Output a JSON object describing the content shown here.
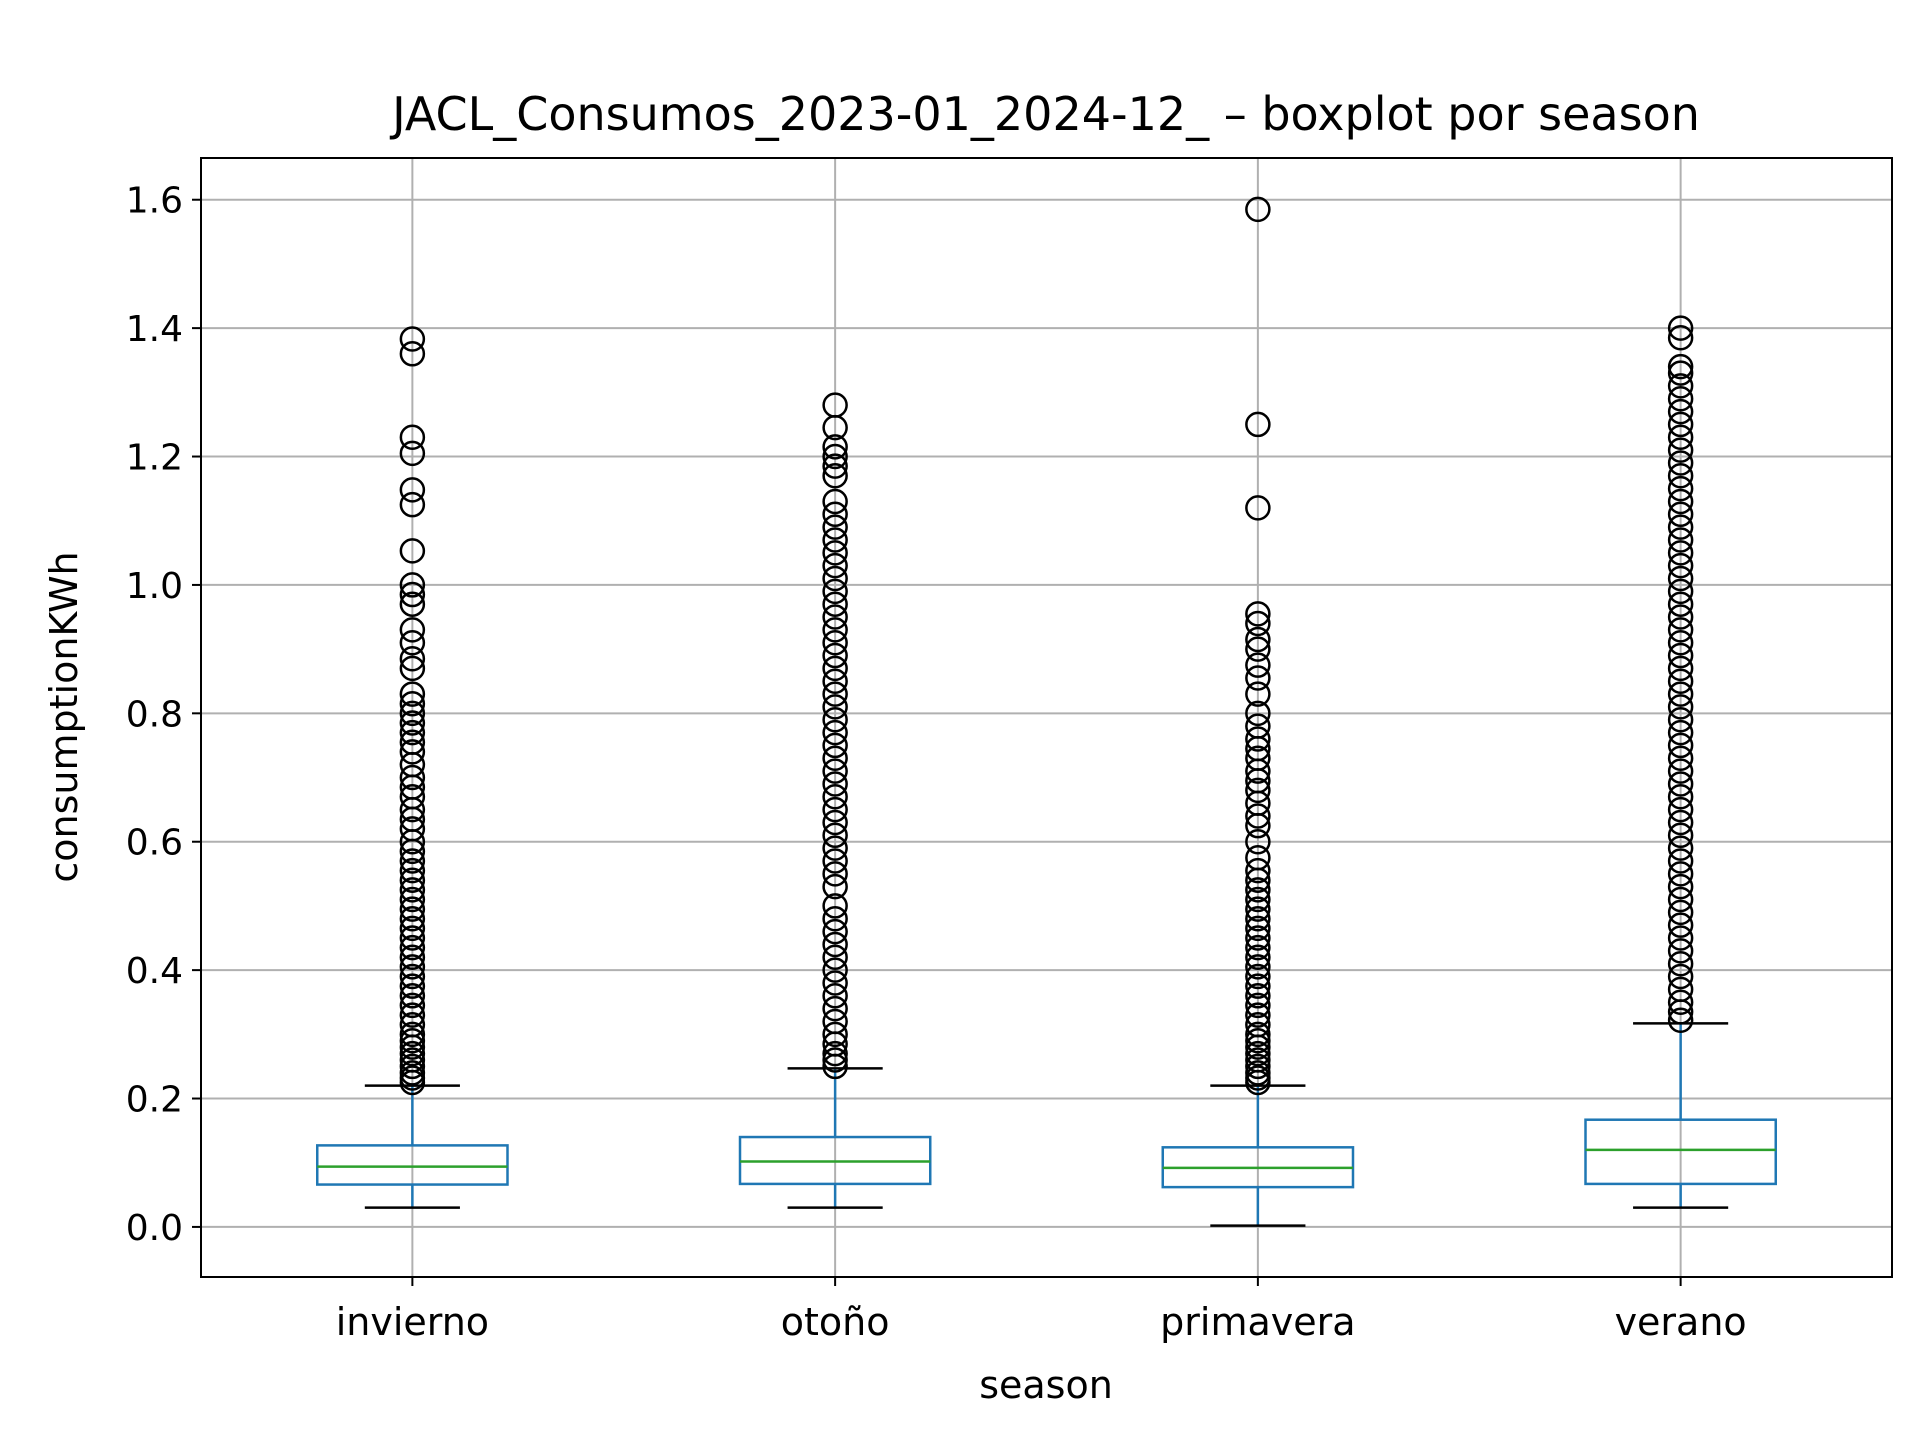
{
  "chart_data": {
    "type": "boxplot",
    "title": "JACL_Consumos_2023-01_2024-12_ – boxplot por season",
    "xlabel": "season",
    "ylabel": "consumptionKWh",
    "ylim": [
      -0.078,
      1.665
    ],
    "yticks": [
      0.0,
      0.2,
      0.4,
      0.6,
      0.8,
      1.0,
      1.2,
      1.4,
      1.6
    ],
    "ytick_labels": [
      "0.0",
      "0.2",
      "0.4",
      "0.6",
      "0.8",
      "1.0",
      "1.2",
      "1.4",
      "1.6"
    ],
    "grid": true,
    "categories": [
      "invierno",
      "otoño",
      "primavera",
      "verano"
    ],
    "boxes": [
      {
        "name": "invierno",
        "whisker_low": 0.03,
        "q1": 0.066,
        "median": 0.094,
        "q3": 0.127,
        "whisker_high": 0.22,
        "outliers": [
          1.383,
          1.36,
          1.23,
          1.205,
          1.148,
          1.125,
          1.053,
          1.0,
          0.985,
          0.97,
          0.93,
          0.91,
          0.885,
          0.87,
          0.83,
          0.815,
          0.8,
          0.785,
          0.77,
          0.755,
          0.74,
          0.72,
          0.7,
          0.685,
          0.67,
          0.65,
          0.635,
          0.62,
          0.6,
          0.585,
          0.57,
          0.555,
          0.54,
          0.525,
          0.51,
          0.495,
          0.48,
          0.465,
          0.45,
          0.435,
          0.42,
          0.405,
          0.39,
          0.375,
          0.36,
          0.345,
          0.33,
          0.315,
          0.3,
          0.29,
          0.28,
          0.27,
          0.26,
          0.25,
          0.24,
          0.232,
          0.225
        ]
      },
      {
        "name": "otoño",
        "whisker_low": 0.03,
        "q1": 0.067,
        "median": 0.102,
        "q3": 0.14,
        "whisker_high": 0.247,
        "outliers": [
          1.28,
          1.245,
          1.215,
          1.2,
          1.185,
          1.17,
          1.13,
          1.11,
          1.09,
          1.07,
          1.05,
          1.03,
          1.01,
          0.99,
          0.97,
          0.95,
          0.93,
          0.91,
          0.89,
          0.87,
          0.85,
          0.83,
          0.81,
          0.79,
          0.77,
          0.75,
          0.73,
          0.71,
          0.69,
          0.67,
          0.65,
          0.63,
          0.61,
          0.59,
          0.57,
          0.55,
          0.53,
          0.5,
          0.48,
          0.46,
          0.44,
          0.42,
          0.4,
          0.38,
          0.36,
          0.34,
          0.32,
          0.3,
          0.285,
          0.27,
          0.26,
          0.25
        ]
      },
      {
        "name": "primavera",
        "whisker_low": 0.002,
        "q1": 0.062,
        "median": 0.092,
        "q3": 0.124,
        "whisker_high": 0.22,
        "outliers": [
          1.585,
          1.25,
          1.12,
          0.955,
          0.94,
          0.915,
          0.9,
          0.875,
          0.855,
          0.83,
          0.8,
          0.78,
          0.76,
          0.745,
          0.73,
          0.71,
          0.695,
          0.68,
          0.66,
          0.64,
          0.625,
          0.6,
          0.575,
          0.555,
          0.54,
          0.525,
          0.51,
          0.495,
          0.48,
          0.465,
          0.45,
          0.435,
          0.42,
          0.405,
          0.39,
          0.375,
          0.36,
          0.345,
          0.33,
          0.315,
          0.3,
          0.29,
          0.28,
          0.27,
          0.26,
          0.25,
          0.24,
          0.232,
          0.225
        ]
      },
      {
        "name": "verano",
        "whisker_low": 0.03,
        "q1": 0.067,
        "median": 0.12,
        "q3": 0.167,
        "whisker_high": 0.317,
        "outliers": [
          1.4,
          1.385,
          1.34,
          1.33,
          1.31,
          1.29,
          1.27,
          1.25,
          1.23,
          1.21,
          1.19,
          1.17,
          1.15,
          1.13,
          1.11,
          1.09,
          1.07,
          1.05,
          1.03,
          1.01,
          0.99,
          0.97,
          0.95,
          0.93,
          0.91,
          0.89,
          0.87,
          0.85,
          0.83,
          0.81,
          0.79,
          0.77,
          0.75,
          0.73,
          0.71,
          0.69,
          0.67,
          0.65,
          0.63,
          0.61,
          0.59,
          0.57,
          0.55,
          0.53,
          0.51,
          0.49,
          0.47,
          0.45,
          0.43,
          0.41,
          0.39,
          0.37,
          0.35,
          0.335,
          0.322
        ]
      }
    ],
    "colors": {
      "box": "#1f77b4",
      "median": "#2ca02c",
      "outlier": "#000000",
      "grid": "#b0b0b0",
      "axes": "#000000"
    }
  }
}
